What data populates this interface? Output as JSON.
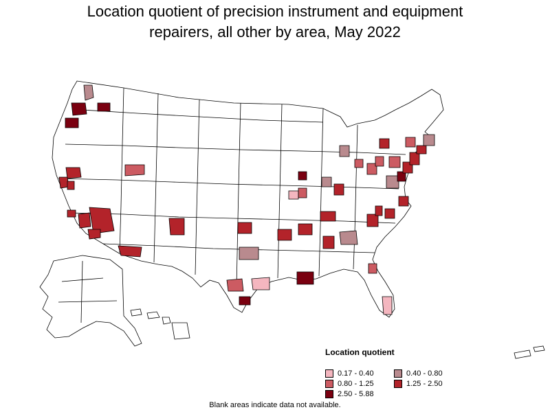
{
  "title": {
    "line1": "Location quotient of precision instrument and equipment",
    "line2": "repairers, all other by area, May 2022"
  },
  "legend": {
    "title": "Location quotient",
    "items": [
      {
        "label": "0.17 - 0.40",
        "color": "#f4b6bf"
      },
      {
        "label": "0.40 - 0.80",
        "color": "#b98a8e"
      },
      {
        "label": "0.80 - 1.25",
        "color": "#cc5b62"
      },
      {
        "label": "1.25 - 2.50",
        "color": "#b3232a"
      },
      {
        "label": "2.50 - 5.88",
        "color": "#7a0010"
      }
    ]
  },
  "footnote": "Blank areas indicate data not available.",
  "colors": {
    "background": "#ffffff",
    "outline": "#000000",
    "c1": "#f4b6bf",
    "c2": "#b98a8e",
    "c3": "#cc5b62",
    "c4": "#b3232a",
    "c5": "#7a0010"
  }
}
